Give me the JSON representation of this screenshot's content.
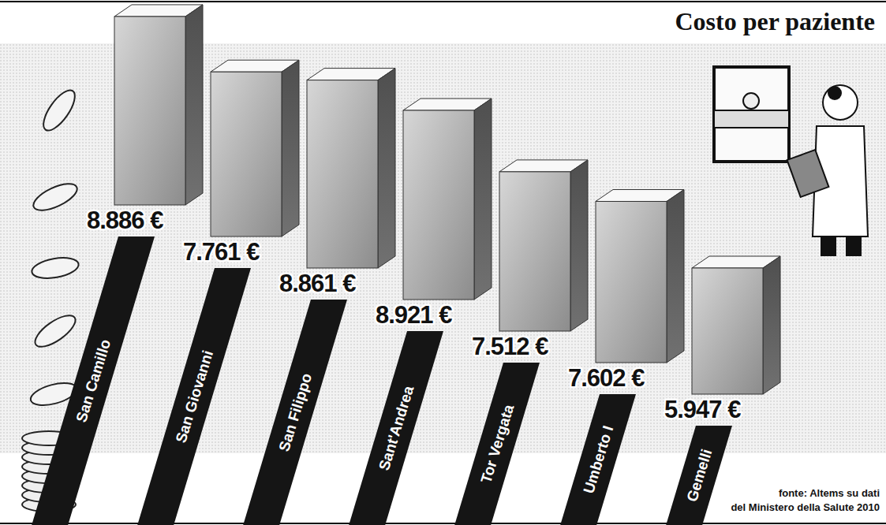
{
  "chart_data": {
    "type": "bar",
    "title": "Costo per paziente",
    "categories": [
      "San Camillo",
      "San Giovanni",
      "San Filippo",
      "Sant'Andrea",
      "Tor Vergata",
      "Umberto I",
      "Gemelli"
    ],
    "values": [
      8886,
      7761,
      8861,
      8921,
      7512,
      7602,
      5947
    ],
    "value_labels": [
      "8.886 €",
      "7.761 €",
      "8.861 €",
      "8.921 €",
      "7.512 €",
      "7.602 €",
      "5.947 €"
    ],
    "data_labels": true,
    "tick_labels": false,
    "color": "#8c8c8c",
    "annotations": [
      "fonte: Altems su dati",
      "del Ministero della Salute 2010"
    ]
  }
}
